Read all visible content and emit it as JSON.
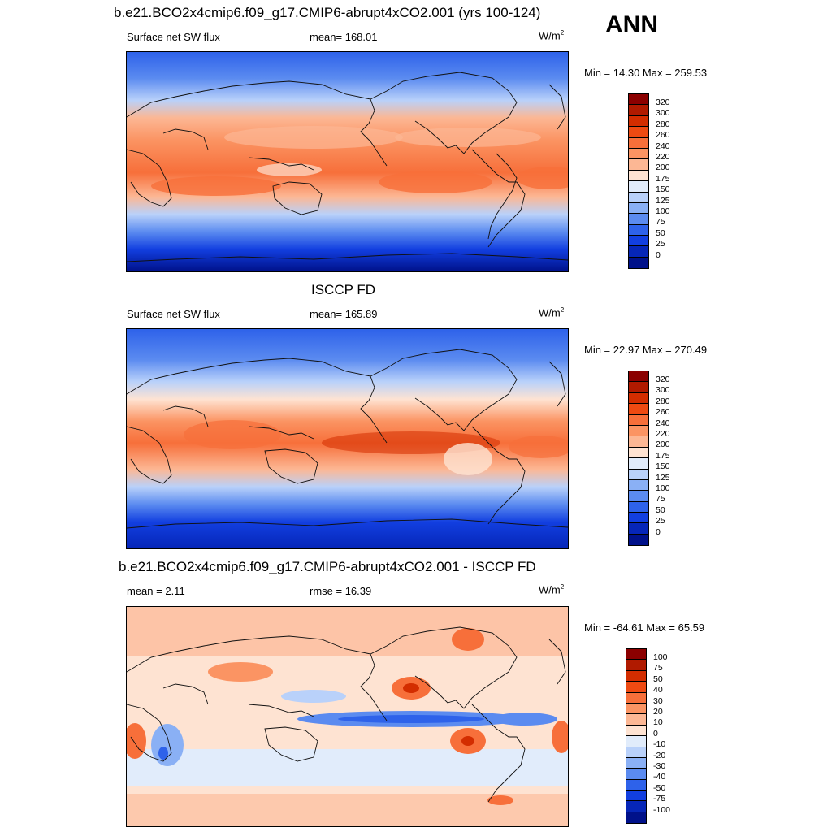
{
  "header": {
    "case_title": "b.e21.BCO2x4cmip6.f09_g17.CMIP6-abrupt4xCO2.001 (yrs 100-124)",
    "season": "ANN"
  },
  "panels": [
    {
      "title": "",
      "left_label": "Surface net SW flux",
      "mid_label": "mean= 168.01",
      "units": "W/m",
      "units_sup": "2",
      "minmax": "Min =  14.30 Max = 259.53",
      "colorbar": {
        "labels": [
          "320",
          "300",
          "280",
          "260",
          "240",
          "220",
          "200",
          "175",
          "150",
          "125",
          "100",
          "75",
          "50",
          "25",
          "0"
        ],
        "colors": [
          "#8b0000",
          "#b01a00",
          "#d32d00",
          "#ee4a12",
          "#f76f3a",
          "#fb9463",
          "#fcb794",
          "#fee3d2",
          "#e1ecfb",
          "#b9d1fa",
          "#8ab0f5",
          "#5b8bf0",
          "#2e62ea",
          "#123fe0",
          "#0626b8",
          "#00118a"
        ]
      }
    },
    {
      "title": "ISCCP FD",
      "left_label": "Surface net SW flux",
      "mid_label": "mean= 165.89",
      "units": "W/m",
      "units_sup": "2",
      "minmax": "Min =  22.97 Max = 270.49",
      "colorbar": {
        "labels": [
          "320",
          "300",
          "280",
          "260",
          "240",
          "220",
          "200",
          "175",
          "150",
          "125",
          "100",
          "75",
          "50",
          "25",
          "0"
        ],
        "colors": [
          "#8b0000",
          "#b01a00",
          "#d32d00",
          "#ee4a12",
          "#f76f3a",
          "#fb9463",
          "#fcb794",
          "#fee3d2",
          "#e1ecfb",
          "#b9d1fa",
          "#8ab0f5",
          "#5b8bf0",
          "#2e62ea",
          "#123fe0",
          "#0626b8",
          "#00118a"
        ]
      }
    },
    {
      "title": "b.e21.BCO2x4cmip6.f09_g17.CMIP6-abrupt4xCO2.001 - ISCCP FD",
      "left_label": "mean =   2.11",
      "mid_label": "rmse =  16.39",
      "units": "W/m",
      "units_sup": "2",
      "minmax": "Min = -64.61 Max =  65.59",
      "colorbar": {
        "labels": [
          "100",
          "75",
          "50",
          "40",
          "30",
          "20",
          "10",
          "0",
          "-10",
          "-20",
          "-30",
          "-40",
          "-50",
          "-75",
          "-100"
        ],
        "colors": [
          "#8b0000",
          "#b01a00",
          "#d32d00",
          "#ee4a12",
          "#f76f3a",
          "#fb9463",
          "#fcb794",
          "#fee3d2",
          "#e1ecfb",
          "#b9d1fa",
          "#8ab0f5",
          "#5b8bf0",
          "#2e62ea",
          "#123fe0",
          "#0626b8",
          "#00118a"
        ]
      }
    }
  ]
}
